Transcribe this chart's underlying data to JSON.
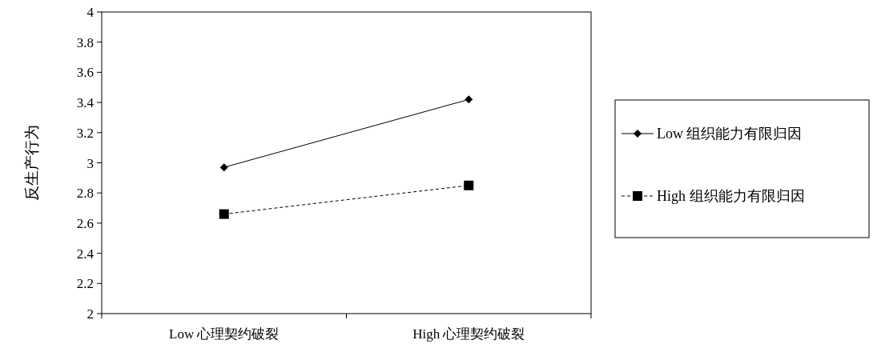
{
  "chart_data": {
    "type": "line",
    "ylabel": "反生产行为",
    "categories": [
      "Low 心理契约破裂",
      "High 心理契约破裂"
    ],
    "series": [
      {
        "name": "Low 组织能力有限归因",
        "color": "#000000",
        "values": [
          2.97,
          3.42
        ],
        "marker": "diamond",
        "line_style": "solid"
      },
      {
        "name": "High 组织能力有限归因",
        "color": "#000000",
        "values": [
          2.66,
          2.85
        ],
        "marker": "square",
        "line_style": "dashed"
      }
    ],
    "ylim": [
      2,
      4
    ],
    "yticks": [
      2,
      {
        "value": 2.2,
        "label": "2.2"
      },
      {
        "value": 2.4,
        "label": "2.4"
      },
      {
        "value": 2.6,
        "label": "2.6"
      },
      {
        "value": 2.8,
        "label": "2.8"
      },
      3,
      {
        "value": 3.2,
        "label": "3.2"
      },
      {
        "value": 3.4,
        "label": "3.4"
      },
      {
        "value": 3.6,
        "label": "3.6"
      },
      {
        "value": 3.8,
        "label": "3.8"
      },
      4
    ],
    "grid": false,
    "legend": "right"
  }
}
